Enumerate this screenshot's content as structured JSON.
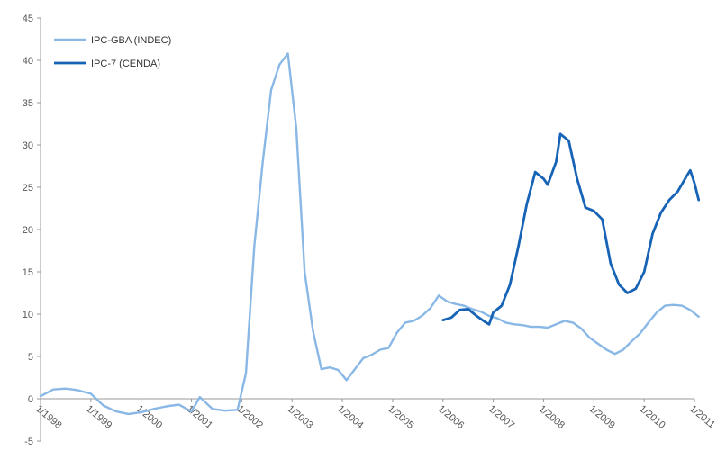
{
  "chart_data": {
    "type": "line",
    "title": "",
    "xlabel": "",
    "ylabel": "",
    "ylim": [
      -5,
      45
    ],
    "yticks": [
      -5,
      0,
      5,
      10,
      15,
      20,
      25,
      30,
      35,
      40,
      45
    ],
    "x_ticks": [
      "1/1998",
      "1/1999",
      "1/2000",
      "1/2001",
      "1/2002",
      "1/2003",
      "1/2004",
      "1/2005",
      "1/2006",
      "1/2007",
      "1/2008",
      "1/2009",
      "1/2010",
      "1/2011"
    ],
    "x_start": "1998-01",
    "x_end": "2011-01",
    "grid": false,
    "legend_position": "top-left",
    "series": [
      {
        "name": "IPC-GBA (INDEC)",
        "color": "#8ab8e6",
        "points": [
          [
            "1998-01",
            0.3
          ],
          [
            "1998-04",
            1.1
          ],
          [
            "1998-07",
            1.2
          ],
          [
            "1998-10",
            1.0
          ],
          [
            "1999-01",
            0.6
          ],
          [
            "1999-04",
            -0.8
          ],
          [
            "1999-07",
            -1.5
          ],
          [
            "1999-10",
            -1.8
          ],
          [
            "2000-01",
            -1.6
          ],
          [
            "2000-04",
            -1.2
          ],
          [
            "2000-07",
            -0.9
          ],
          [
            "2000-10",
            -0.7
          ],
          [
            "2001-01",
            -1.5
          ],
          [
            "2001-03",
            0.2
          ],
          [
            "2001-06",
            -1.2
          ],
          [
            "2001-09",
            -1.4
          ],
          [
            "2001-12",
            -1.3
          ],
          [
            "2002-02",
            3.0
          ],
          [
            "2002-04",
            18.0
          ],
          [
            "2002-06",
            28.0
          ],
          [
            "2002-08",
            36.5
          ],
          [
            "2002-10",
            39.5
          ],
          [
            "2002-12",
            40.8
          ],
          [
            "2003-02",
            32.0
          ],
          [
            "2003-04",
            15.0
          ],
          [
            "2003-06",
            8.0
          ],
          [
            "2003-08",
            3.5
          ],
          [
            "2003-10",
            3.7
          ],
          [
            "2003-12",
            3.4
          ],
          [
            "2004-02",
            2.2
          ],
          [
            "2004-04",
            3.5
          ],
          [
            "2004-06",
            4.8
          ],
          [
            "2004-08",
            5.2
          ],
          [
            "2004-10",
            5.8
          ],
          [
            "2004-12",
            6.0
          ],
          [
            "2005-02",
            7.8
          ],
          [
            "2005-04",
            9.0
          ],
          [
            "2005-06",
            9.2
          ],
          [
            "2005-08",
            9.8
          ],
          [
            "2005-10",
            10.7
          ],
          [
            "2005-12",
            12.2
          ],
          [
            "2006-02",
            11.5
          ],
          [
            "2006-04",
            11.2
          ],
          [
            "2006-06",
            11.0
          ],
          [
            "2006-08",
            10.6
          ],
          [
            "2006-10",
            10.3
          ],
          [
            "2006-12",
            9.8
          ],
          [
            "2007-02",
            9.5
          ],
          [
            "2007-04",
            9.0
          ],
          [
            "2007-06",
            8.8
          ],
          [
            "2007-08",
            8.7
          ],
          [
            "2007-10",
            8.5
          ],
          [
            "2007-12",
            8.5
          ],
          [
            "2008-02",
            8.4
          ],
          [
            "2008-04",
            8.8
          ],
          [
            "2008-06",
            9.2
          ],
          [
            "2008-08",
            9.0
          ],
          [
            "2008-10",
            8.3
          ],
          [
            "2008-12",
            7.2
          ],
          [
            "2009-02",
            6.5
          ],
          [
            "2009-04",
            5.8
          ],
          [
            "2009-06",
            5.3
          ],
          [
            "2009-08",
            5.8
          ],
          [
            "2009-10",
            6.8
          ],
          [
            "2009-12",
            7.7
          ],
          [
            "2010-02",
            9.0
          ],
          [
            "2010-04",
            10.2
          ],
          [
            "2010-06",
            11.0
          ],
          [
            "2010-08",
            11.1
          ],
          [
            "2010-10",
            11.0
          ],
          [
            "2010-12",
            10.5
          ],
          [
            "2011-02",
            9.7
          ]
        ]
      },
      {
        "name": "IPC-7 (CENDA)",
        "color": "#1763b5",
        "points": [
          [
            "2006-01",
            9.3
          ],
          [
            "2006-03",
            9.6
          ],
          [
            "2006-05",
            10.5
          ],
          [
            "2006-07",
            10.6
          ],
          [
            "2006-09",
            9.8
          ],
          [
            "2006-11",
            9.1
          ],
          [
            "2006-12",
            8.8
          ],
          [
            "2007-01",
            10.2
          ],
          [
            "2007-03",
            11.0
          ],
          [
            "2007-05",
            13.5
          ],
          [
            "2007-07",
            18.0
          ],
          [
            "2007-09",
            23.0
          ],
          [
            "2007-11",
            26.8
          ],
          [
            "2008-01",
            26.0
          ],
          [
            "2008-02",
            25.3
          ],
          [
            "2008-04",
            28.0
          ],
          [
            "2008-05",
            31.3
          ],
          [
            "2008-07",
            30.5
          ],
          [
            "2008-09",
            26.0
          ],
          [
            "2008-11",
            22.6
          ],
          [
            "2009-01",
            22.2
          ],
          [
            "2009-03",
            21.2
          ],
          [
            "2009-05",
            16.0
          ],
          [
            "2009-07",
            13.5
          ],
          [
            "2009-09",
            12.5
          ],
          [
            "2009-11",
            13.0
          ],
          [
            "2010-01",
            15.0
          ],
          [
            "2010-03",
            19.5
          ],
          [
            "2010-05",
            22.0
          ],
          [
            "2010-07",
            23.5
          ],
          [
            "2010-09",
            24.5
          ],
          [
            "2010-11",
            26.2
          ],
          [
            "2010-12",
            27.0
          ],
          [
            "2011-01",
            25.5
          ],
          [
            "2011-02",
            23.5
          ]
        ]
      }
    ]
  }
}
